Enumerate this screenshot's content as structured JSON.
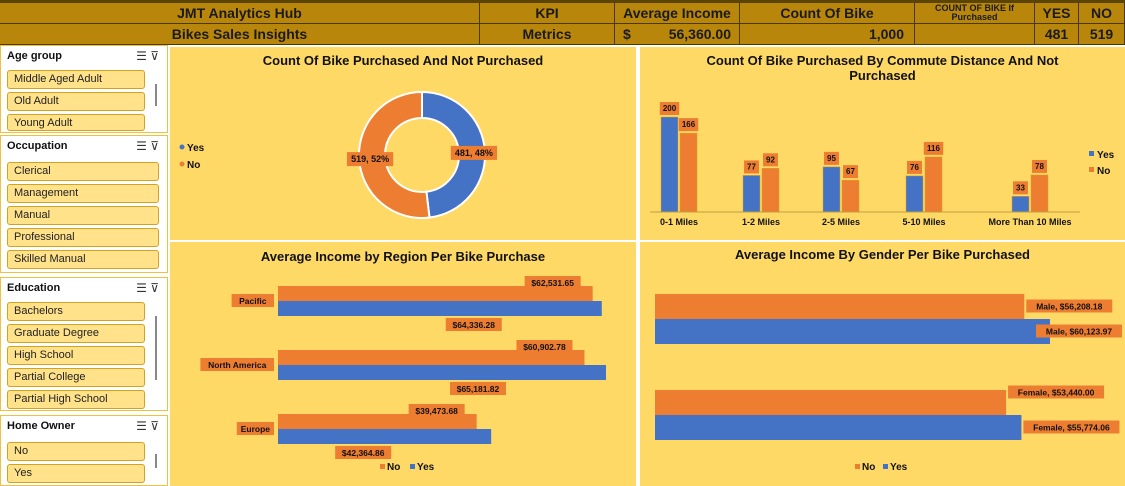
{
  "header": {
    "title": "JMT Analytics Hub",
    "subtitle": "Bikes Sales Insights",
    "kpi_label": "KPI",
    "kpi_value": "Metrics",
    "avg_income_label": "Average Income",
    "avg_income_currency": "$",
    "avg_income_value": "56,360.00",
    "count_label": "Count Of Bike",
    "count_value": "1,000",
    "count_if_label": "COUNT OF BIKE If Purchased",
    "yes_label": "YES",
    "yes_value": "481",
    "no_label": "NO",
    "no_value": "519"
  },
  "slicers": {
    "age": {
      "title": "Age group",
      "items": [
        "Middle Aged Adult",
        "Old Adult",
        "Young Adult"
      ]
    },
    "occupation": {
      "title": "Occupation",
      "items": [
        "Clerical",
        "Management",
        "Manual",
        "Professional",
        "Skilled Manual"
      ]
    },
    "education": {
      "title": "Education",
      "items": [
        "Bachelors",
        "Graduate Degree",
        "High School",
        "Partial College",
        "Partial High School"
      ]
    },
    "home": {
      "title": "Home Owner",
      "items": [
        "No",
        "Yes"
      ]
    }
  },
  "colors": {
    "yes": "#4472c4",
    "no": "#ed7d31",
    "panel": "#ffd966"
  },
  "chart_data": [
    {
      "type": "pie",
      "title": "Count Of Bike Purchased And Not Purchased",
      "legend": [
        "Yes",
        "No"
      ],
      "slices": [
        {
          "name": "Yes",
          "value": 481,
          "label": "481, 48%"
        },
        {
          "name": "No",
          "value": 519,
          "label": "519, 52%"
        }
      ]
    },
    {
      "type": "bar",
      "title": "Count Of Bike Purchased By Commute Distance And Not Purchased",
      "categories": [
        "0-1 Miles",
        "1-2 Miles",
        "2-5 Miles",
        "5-10 Miles",
        "More Than 10 Miles"
      ],
      "series": [
        {
          "name": "Yes",
          "values": [
            200,
            77,
            95,
            76,
            33
          ]
        },
        {
          "name": "No",
          "values": [
            166,
            92,
            67,
            116,
            78
          ]
        }
      ],
      "legend": [
        "Yes",
        "No"
      ]
    },
    {
      "type": "bar",
      "title": "Average Income by Region Per Bike Purchase",
      "categories": [
        "Pacific",
        "North America",
        "Europe"
      ],
      "series": [
        {
          "name": "No",
          "values": [
            62531.65,
            60902.78,
            39473.68
          ],
          "labels": [
            "$62,531.65",
            "$60,902.78",
            "$39,473.68"
          ]
        },
        {
          "name": "Yes",
          "values": [
            64336.28,
            65181.82,
            42364.86
          ],
          "labels": [
            "$64,336.28",
            "$65,181.82",
            "$42,364.86"
          ]
        }
      ],
      "legend": [
        "No",
        "Yes"
      ]
    },
    {
      "type": "bar",
      "title": "Average Income By Gender Per Bike Purchased",
      "categories": [
        "Male",
        "Female"
      ],
      "series": [
        {
          "name": "No",
          "values": [
            56208.18,
            53440.0
          ],
          "labels": [
            "Male, $56,208.18",
            "Female, $53,440.00"
          ]
        },
        {
          "name": "Yes",
          "values": [
            60123.97,
            55774.06
          ],
          "labels": [
            "Male, $60,123.97",
            "Female, $55,774.06"
          ]
        }
      ],
      "legend": [
        "No",
        "Yes"
      ]
    }
  ]
}
